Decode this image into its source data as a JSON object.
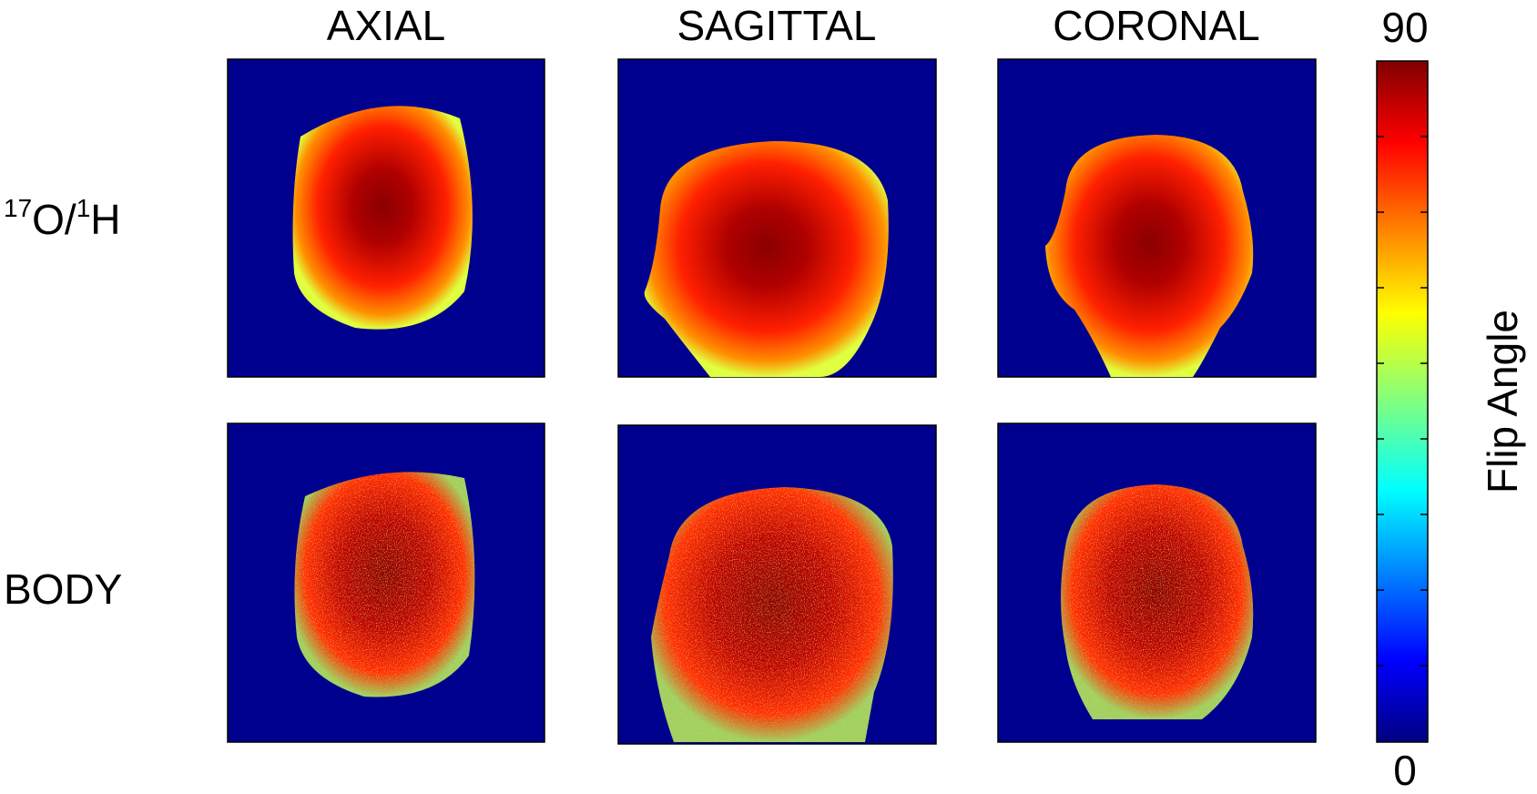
{
  "columns": [
    "AXIAL",
    "SAGITTAL",
    "CORONAL"
  ],
  "rows": [
    {
      "label_parts": [
        "17",
        "O/",
        "1",
        "H"
      ]
    },
    {
      "label": "BODY"
    }
  ],
  "colorbar": {
    "label": "Flip Angle",
    "max_label": "90",
    "min_label": "0"
  }
}
